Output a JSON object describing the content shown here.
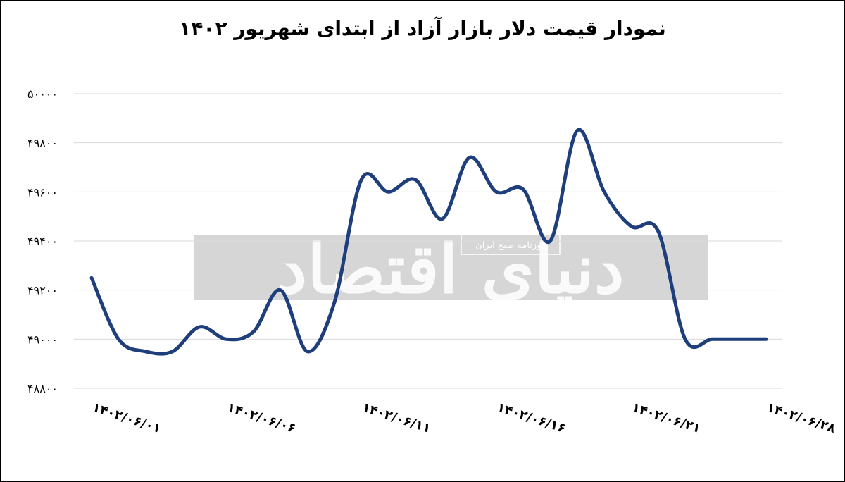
{
  "chart_data": {
    "type": "line",
    "title": "نمودار قیمت دلار بازار آزاد از ابتدای شهریور ۱۴۰۲",
    "xlabel": "",
    "ylabel": "",
    "ylim": [
      48800,
      50000
    ],
    "yticks": [
      "۴۸۸۰۰",
      "۴۹۰۰۰",
      "۴۹۲۰۰",
      "۴۹۴۰۰",
      "۴۹۶۰۰",
      "۴۹۸۰۰",
      "۵۰۰۰۰"
    ],
    "ytick_values": [
      48800,
      49000,
      49200,
      49400,
      49600,
      49800,
      50000
    ],
    "xtick_labels": [
      "۱۴۰۲/۰۶/۰۱",
      "۱۴۰۲/۰۶/۰۶",
      "۱۴۰۲/۰۶/۱۱",
      "۱۴۰۲/۰۶/۱۶",
      "۱۴۰۲/۰۶/۲۱",
      "۱۴۰۲/۰۶/۲۸"
    ],
    "xtick_positions": [
      1,
      6,
      11,
      16,
      21,
      26
    ],
    "grid": true,
    "series": [
      {
        "color": "#1f3e7c",
        "x": [
          1,
          2,
          3,
          4,
          5,
          6,
          7,
          8,
          9,
          10,
          11,
          12,
          13,
          14,
          15,
          16,
          17,
          18,
          19,
          20,
          21,
          22,
          23,
          24,
          25,
          26
        ],
        "values": [
          49250,
          49000,
          48950,
          48950,
          49050,
          49000,
          49030,
          49200,
          48950,
          49150,
          49650,
          49600,
          49650,
          49490,
          49740,
          49600,
          49610,
          49400,
          49850,
          49600,
          49460,
          49440,
          49000,
          49000,
          49000,
          49000
        ]
      }
    ]
  },
  "watermark": {
    "brand": "دنیای اقتصاد",
    "tagline": "روزنامه صبح ایران"
  }
}
